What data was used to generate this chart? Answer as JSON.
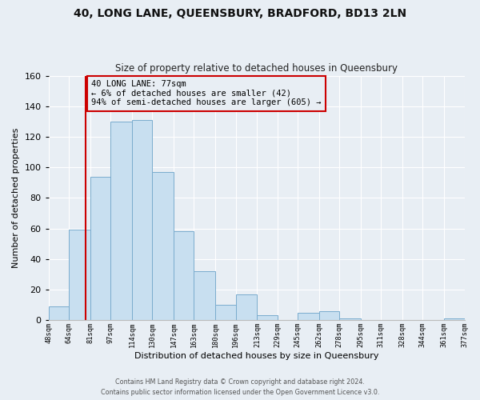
{
  "title": "40, LONG LANE, QUEENSBURY, BRADFORD, BD13 2LN",
  "subtitle": "Size of property relative to detached houses in Queensbury",
  "xlabel": "Distribution of detached houses by size in Queensbury",
  "ylabel": "Number of detached properties",
  "bar_color": "#c8dff0",
  "bar_edge_color": "#7aacce",
  "bins": [
    48,
    64,
    81,
    97,
    114,
    130,
    147,
    163,
    180,
    196,
    213,
    229,
    245,
    262,
    278,
    295,
    311,
    328,
    344,
    361,
    377
  ],
  "counts": [
    9,
    59,
    94,
    130,
    131,
    97,
    58,
    32,
    10,
    17,
    3,
    0,
    5,
    6,
    1,
    0,
    0,
    0,
    0,
    1
  ],
  "tick_labels": [
    "48sqm",
    "64sqm",
    "81sqm",
    "97sqm",
    "114sqm",
    "130sqm",
    "147sqm",
    "163sqm",
    "180sqm",
    "196sqm",
    "213sqm",
    "229sqm",
    "245sqm",
    "262sqm",
    "278sqm",
    "295sqm",
    "311sqm",
    "328sqm",
    "344sqm",
    "361sqm",
    "377sqm"
  ],
  "ylim": [
    0,
    160
  ],
  "yticks": [
    0,
    20,
    40,
    60,
    80,
    100,
    120,
    140,
    160
  ],
  "vline_x": 77,
  "vline_color": "#cc0000",
  "annotation_line1": "40 LONG LANE: 77sqm",
  "annotation_line2": "← 6% of detached houses are smaller (42)",
  "annotation_line3": "94% of semi-detached houses are larger (605) →",
  "annotation_box_edge": "#cc0000",
  "background_color": "#e8eef4",
  "grid_color": "#ffffff",
  "footer_line1": "Contains HM Land Registry data © Crown copyright and database right 2024.",
  "footer_line2": "Contains public sector information licensed under the Open Government Licence v3.0."
}
